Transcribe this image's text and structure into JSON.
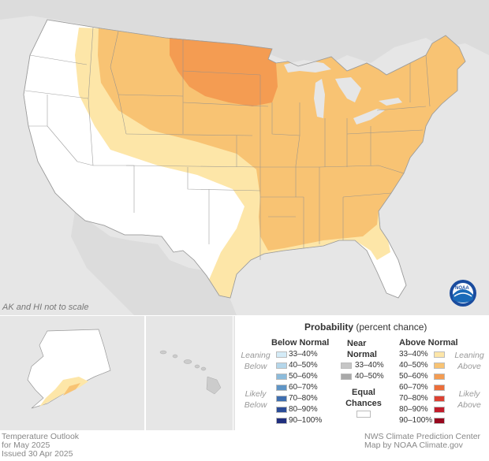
{
  "note": "AK and HI not to scale",
  "legend": {
    "title": "Probability",
    "title_sub": "(percent chance)",
    "below_normal": {
      "header": "Below Normal",
      "leaning_label": "Leaning Below",
      "likely_label": "Likely Below",
      "ranges": [
        "33–40%",
        "40–50%",
        "50–60%",
        "60–70%",
        "70–80%",
        "80–90%",
        "90–100%"
      ],
      "colors": [
        "#d4ebf7",
        "#b4d6ea",
        "#8cbbdb",
        "#5f95c6",
        "#3f6fb0",
        "#2c4d98",
        "#202f7e"
      ]
    },
    "near_normal": {
      "header": "Near Normal",
      "ranges": [
        "33–40%",
        "40–50%"
      ],
      "colors": [
        "#c6c6c6",
        "#a9a9a9"
      ]
    },
    "equal_chances": {
      "label": "Equal Chances",
      "color": "#ffffff"
    },
    "above_normal": {
      "header": "Above Normal",
      "leaning_label": "Leaning Above",
      "likely_label": "Likely Above",
      "ranges": [
        "33–40%",
        "40–50%",
        "50–60%",
        "60–70%",
        "70–80%",
        "80–90%",
        "90–100%"
      ],
      "colors": [
        "#fde6a8",
        "#f8c373",
        "#f49c52",
        "#ec6e3a",
        "#dc4132",
        "#c21d2b",
        "#98081e"
      ]
    }
  },
  "footer": {
    "left_line1": "Temperature Outlook",
    "left_line2": "for May 2025",
    "left_line3": "Issued 30 Apr 2025",
    "right_line1": "NWS Climate Prediction Center",
    "right_line2": "Map by NOAA Climate.gov"
  },
  "logo": {
    "text": "NOAA",
    "icon": "noaa-logo-icon"
  }
}
